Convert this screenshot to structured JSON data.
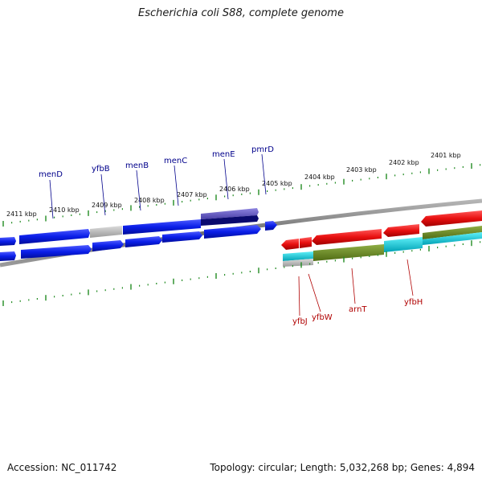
{
  "title": "Escherichia coli S88, complete genome",
  "footer": {
    "accession": "Accession: NC_011742",
    "summary": "Topology: circular; Length: 5,032,268 bp; Genes: 4,894"
  },
  "kbp_ticks": [
    "2411 kbp",
    "2410 kbp",
    "2409 kbp",
    "2408 kbp",
    "2407 kbp",
    "2406 kbp",
    "2405 kbp",
    "2404 kbp",
    "2403 kbp",
    "2402 kbp",
    "2401 kbp"
  ],
  "genes_top": [
    "menD",
    "yfbB",
    "menB",
    "menC",
    "menE",
    "pmrD"
  ],
  "genes_bottom": [
    "yfbJ",
    "yfbW",
    "arnT",
    "yfbH"
  ],
  "colors": {
    "backbone": "#7a7a7a",
    "tick": "#228b22",
    "forward_gene": "#0a1ee8",
    "reverse_gene": "#e81010",
    "gray_gene": "#b8b8b8",
    "purple_gene": "#6a5acd",
    "olive_gene": "#6b8e23",
    "cyan_gene": "#00c8d8"
  }
}
